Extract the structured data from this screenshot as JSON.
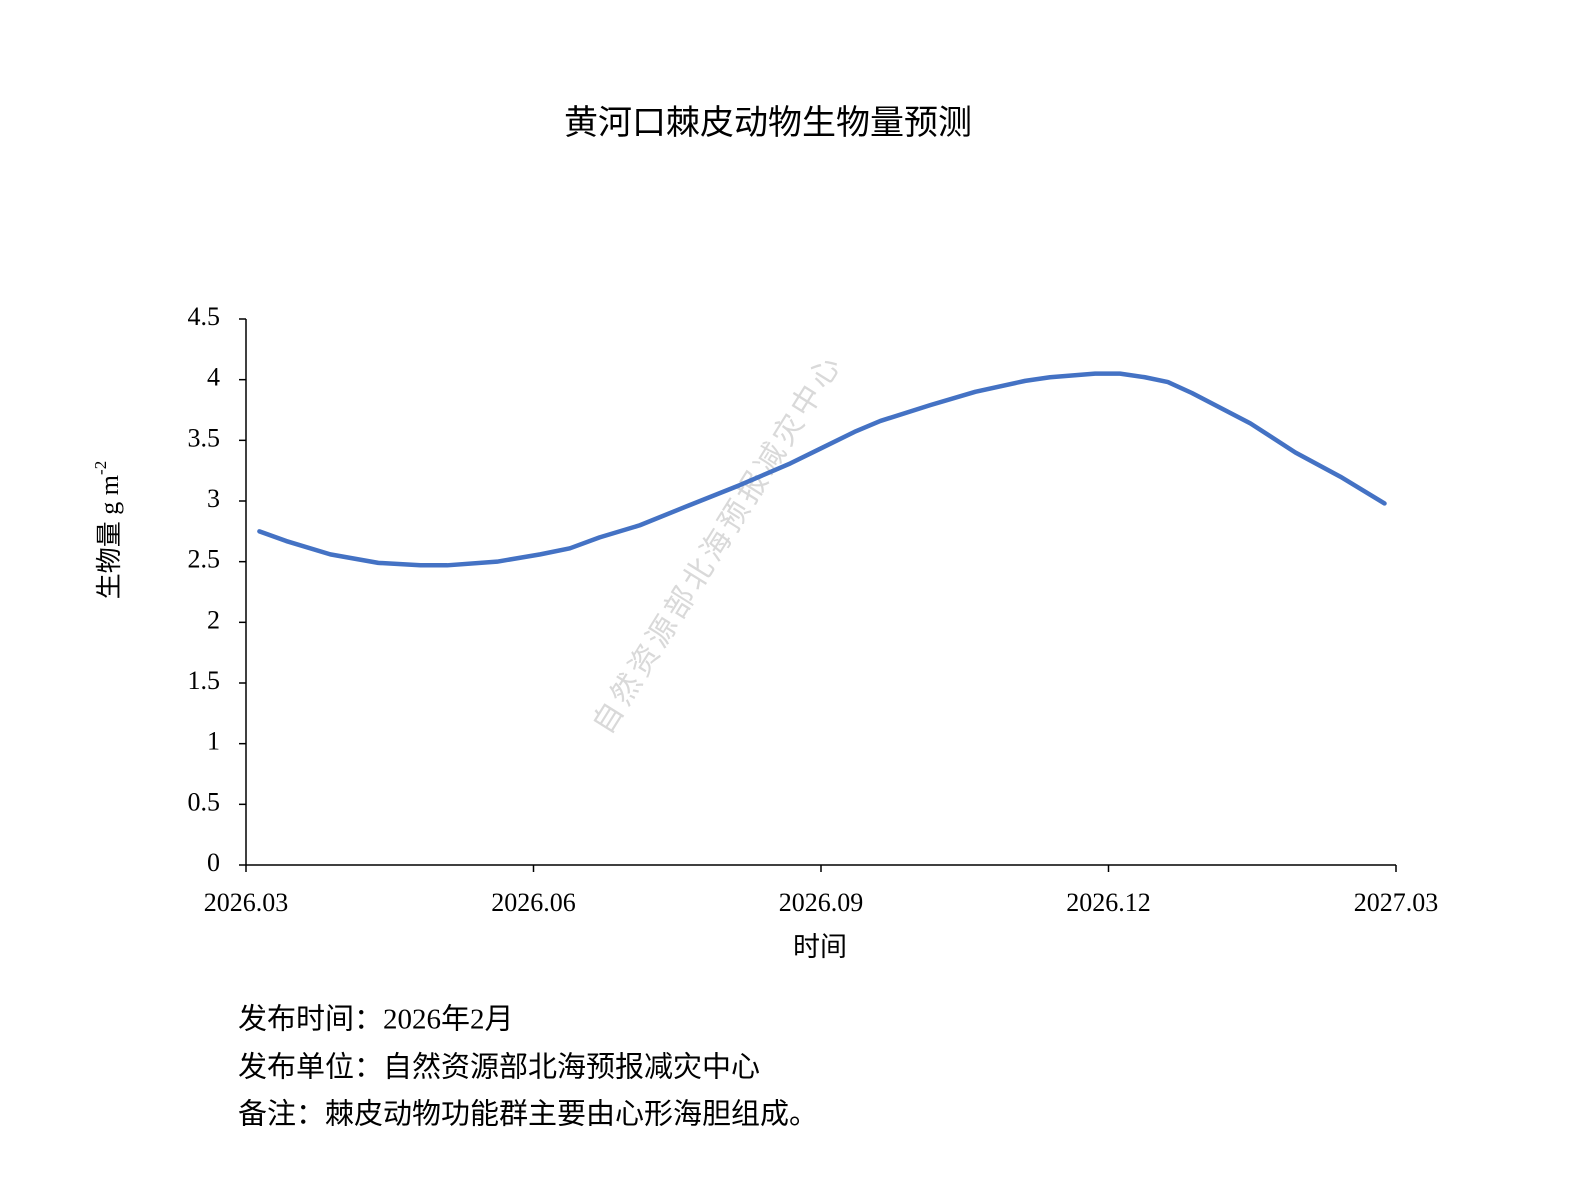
{
  "chart_data": {
    "type": "line",
    "title": "黄河口棘皮动物生物量预测",
    "x_label": "时间",
    "y_label": "生物量 g m",
    "y_label_superscript": "-2",
    "watermark": "自然资源部北海预报减灾中心",
    "x": [
      0.14,
      0.42,
      0.88,
      1.38,
      1.82,
      2.1,
      2.62,
      3.07,
      3.38,
      3.69,
      4.11,
      4.61,
      5.15,
      5.68,
      5.99,
      6.35,
      6.62,
      7.14,
      7.61,
      8.13,
      8.39,
      8.86,
      9.12,
      9.38,
      9.62,
      9.87,
      10.48,
      10.95,
      11.42,
      11.88
    ],
    "values": [
      2.75,
      2.67,
      2.56,
      2.49,
      2.47,
      2.47,
      2.5,
      2.56,
      2.61,
      2.7,
      2.8,
      2.96,
      3.13,
      3.31,
      3.43,
      3.57,
      3.66,
      3.79,
      3.9,
      3.99,
      4.02,
      4.05,
      4.05,
      4.02,
      3.98,
      3.89,
      3.64,
      3.4,
      3.2,
      2.98
    ],
    "color": "#4472c4",
    "xlim": [
      0,
      12
    ],
    "xticks": [
      {
        "value": 0,
        "label": "2026.03"
      },
      {
        "value": 3,
        "label": "2026.06"
      },
      {
        "value": 6,
        "label": "2026.09"
      },
      {
        "value": 9,
        "label": "2026.12"
      },
      {
        "value": 12,
        "label": "2027.03"
      }
    ],
    "ylim": [
      0,
      4.5
    ],
    "yticks": [
      0,
      0.5,
      1,
      1.5,
      2,
      2.5,
      3,
      3.5,
      4,
      4.5
    ],
    "grid": false
  },
  "footer": [
    "发布时间：2026年2月",
    "发布单位：自然资源部北海预报减灾中心",
    "备注：棘皮动物功能群主要由心形海胆组成。"
  ]
}
